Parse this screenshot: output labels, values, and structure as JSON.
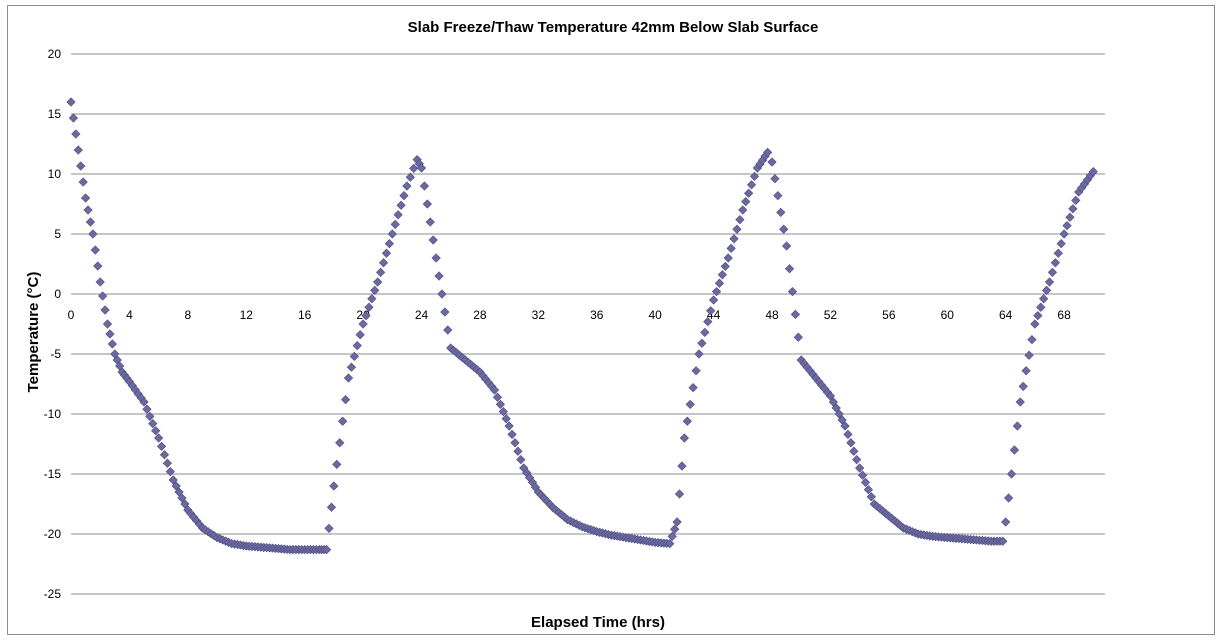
{
  "chart_data": {
    "type": "scatter",
    "title": "Slab Freeze/Thaw Temperature 42mm Below Slab Surface",
    "xlabel": "Elapsed Time (hrs)",
    "ylabel": "Temperature (°C)",
    "xlim": [
      0,
      70.8
    ],
    "ylim": [
      -25,
      20
    ],
    "yticks": [
      20,
      15,
      10,
      5,
      0,
      -5,
      -10,
      -15,
      -20,
      -25
    ],
    "xticks": [
      0,
      4,
      8,
      12,
      16,
      20,
      24,
      28,
      32,
      36,
      40,
      44,
      48,
      52,
      56,
      60,
      64,
      68
    ],
    "grid": true,
    "legend": "none",
    "marker": "diamond",
    "color": "#6a6aa0",
    "series": [
      {
        "x": [
          0,
          0.5,
          1,
          1.5,
          2,
          2.5,
          3,
          3.5,
          4,
          5,
          6,
          7,
          8,
          9,
          10,
          11,
          12,
          13,
          14,
          15,
          16,
          17,
          17.5,
          18,
          19,
          20,
          21,
          22,
          23,
          23.7,
          24,
          25,
          26,
          27,
          28,
          29,
          30,
          31,
          32,
          33,
          34,
          35,
          36,
          37,
          38,
          39,
          40,
          41,
          41.5,
          42,
          43,
          44,
          45,
          46,
          47,
          47.7,
          48,
          49,
          50,
          51,
          52,
          53,
          54,
          55,
          56,
          57,
          58,
          59,
          60,
          61,
          62,
          63,
          63.8,
          64,
          65,
          66,
          67,
          68,
          69,
          70
        ],
        "y": [
          16,
          12,
          8,
          5,
          1,
          -2.5,
          -5,
          -6.5,
          -7.3,
          -9,
          -12,
          -15.5,
          -18,
          -19.5,
          -20.3,
          -20.8,
          -21,
          -21.1,
          -21.2,
          -21.3,
          -21.3,
          -21.3,
          -21.3,
          -16,
          -7,
          -2.5,
          1,
          5,
          9,
          11.2,
          10.5,
          3,
          -4.5,
          -5.5,
          -6.5,
          -8,
          -11,
          -14.5,
          -16.5,
          -17.8,
          -18.8,
          -19.4,
          -19.8,
          -20.1,
          -20.3,
          -20.5,
          -20.7,
          -20.8,
          -19,
          -12,
          -5,
          -0.5,
          3,
          7,
          10.5,
          11.8,
          11,
          4,
          -5.5,
          -7,
          -8.5,
          -11,
          -14.5,
          -17.5,
          -18.5,
          -19.5,
          -20,
          -20.2,
          -20.3,
          -20.4,
          -20.5,
          -20.6,
          -20.6,
          -19,
          -9,
          -2.5,
          1,
          5,
          8.5,
          10.2
        ]
      }
    ]
  }
}
